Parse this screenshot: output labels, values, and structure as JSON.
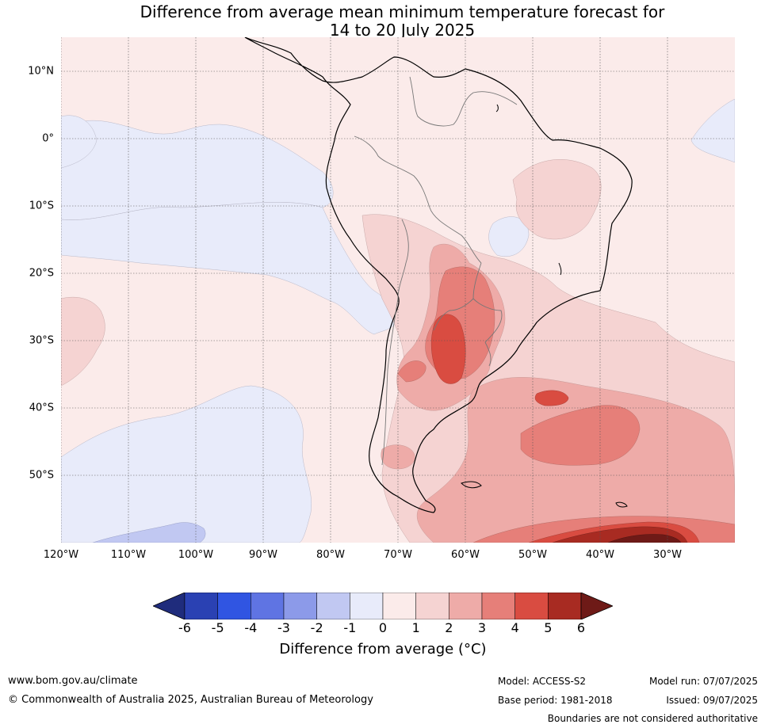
{
  "title_line1": "Difference from average mean minimum temperature forecast for",
  "title_line2": "14 to 20 July 2025",
  "lat_labels": [
    "10°N",
    "0°",
    "10°S",
    "20°S",
    "30°S",
    "40°S",
    "50°S"
  ],
  "lon_labels": [
    "120°W",
    "110°W",
    "100°W",
    "90°W",
    "80°W",
    "70°W",
    "60°W",
    "50°W",
    "40°W",
    "30°W"
  ],
  "colorbar": {
    "ticks": [
      "-6",
      "-5",
      "-4",
      "-3",
      "-2",
      "-1",
      "0",
      "1",
      "2",
      "3",
      "4",
      "5",
      "6"
    ],
    "colors": [
      "#1f2c7c",
      "#2a41b3",
      "#3055e2",
      "#5f74e3",
      "#8c9ae9",
      "#c1c8f2",
      "#e8ebfa",
      "#fbebea",
      "#f5d3d2",
      "#eeaba8",
      "#e67f79",
      "#d94c41",
      "#a82b22",
      "#6e1a17"
    ],
    "label": "Difference from average (°C)"
  },
  "footer": {
    "url": "www.bom.gov.au/climate",
    "copyright": "© Commonwealth of Australia 2025, Australian Bureau of Meteorology",
    "model": "Model: ACCESS-S2",
    "model_run": "Model run: 07/07/2025",
    "base_period": "Base period: 1981-2018",
    "issued": "Issued: 09/07/2025",
    "disclaimer": "Boundaries are not considered authoritative"
  },
  "map_colors": {
    "ocean_base": "#fbebea",
    "cool": "#e8ebfa",
    "cool2": "#c1c8f2",
    "warm1": "#f5d3d2",
    "warm2": "#eeaba8",
    "warm3": "#e67f79",
    "warm4": "#d94c41",
    "warm5": "#a82b22",
    "warm6": "#6e1a17"
  }
}
